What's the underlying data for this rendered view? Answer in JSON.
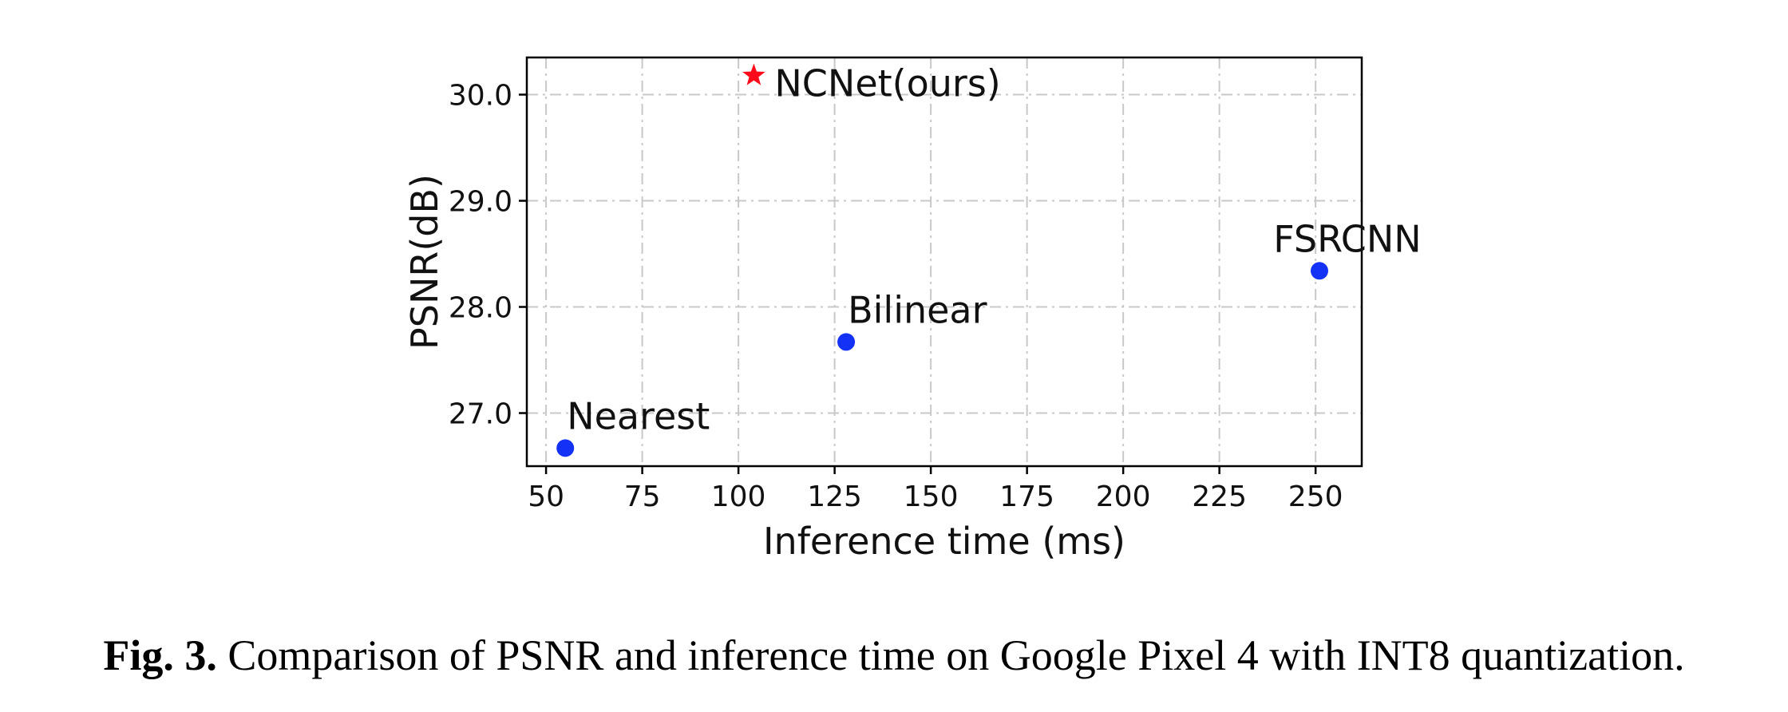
{
  "chart_data": {
    "type": "scatter",
    "xlabel": "Inference time (ms)",
    "ylabel": "PSNR(dB)",
    "xlim": [
      45,
      262
    ],
    "ylim": [
      26.5,
      30.35
    ],
    "xticks": [
      "50",
      "75",
      "100",
      "125",
      "150",
      "175",
      "200",
      "225",
      "250"
    ],
    "yticks": [
      "27.0",
      "28.0",
      "29.0",
      "30.0"
    ],
    "grid": true,
    "points": [
      {
        "label": "NCNet(ours)",
        "x": 104,
        "y": 30.18,
        "marker": "star",
        "color": "#ff0a1a"
      },
      {
        "label": "FSRCNN",
        "x": 251,
        "y": 28.34,
        "marker": "circle",
        "color": "#1432f5"
      },
      {
        "label": "Bilinear",
        "x": 128,
        "y": 27.67,
        "marker": "circle",
        "color": "#1432f5"
      },
      {
        "label": "Nearest",
        "x": 55,
        "y": 26.67,
        "marker": "circle",
        "color": "#1432f5"
      }
    ]
  },
  "caption": {
    "prefix": "Fig. 3.",
    "text": "Comparison of PSNR and inference time on Google Pixel 4 with INT8 quantization."
  }
}
